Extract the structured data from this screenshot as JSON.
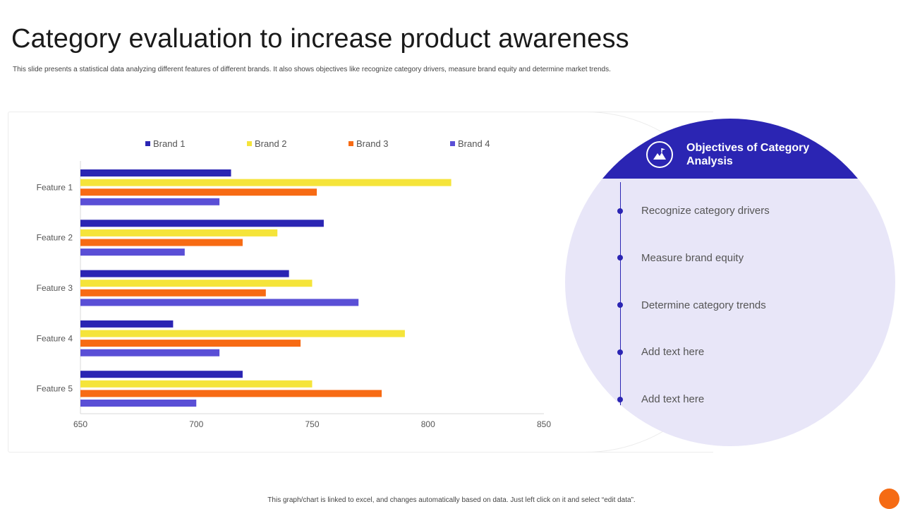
{
  "title": "Category evaluation to increase product awareness",
  "subtitle": "This slide presents a statistical data analyzing different features of different brands. It also shows objectives like recognize category drivers, measure brand equity and determine market trends.",
  "chart_data": {
    "type": "bar",
    "orientation": "horizontal",
    "categories": [
      "Feature 1",
      "Feature 2",
      "Feature 3",
      "Feature 4",
      "Feature 5"
    ],
    "series": [
      {
        "name": "Brand 1",
        "color": "#2b25b3",
        "values": [
          715,
          755,
          740,
          690,
          720
        ]
      },
      {
        "name": "Brand 2",
        "color": "#f5e43a",
        "values": [
          810,
          735,
          750,
          790,
          750
        ]
      },
      {
        "name": "Brand 3",
        "color": "#f76b14",
        "values": [
          752,
          720,
          730,
          745,
          780
        ]
      },
      {
        "name": "Brand 4",
        "color": "#5a4fd6",
        "values": [
          710,
          695,
          770,
          710,
          700
        ]
      }
    ],
    "xlim": [
      650,
      850
    ],
    "xticks": [
      650,
      700,
      750,
      800,
      850
    ],
    "legend_position": "top",
    "title": "",
    "xlabel": "",
    "ylabel": ""
  },
  "objectives": {
    "heading": "Objectives of Category Analysis",
    "icon": "mountain-flag-icon",
    "items": [
      "Recognize category drivers",
      "Measure brand equity",
      "Determine category trends",
      "Add text here",
      "Add text here"
    ]
  },
  "footer": "This graph/chart is linked to excel, and changes automatically based on data. Just left click on it and select “edit data”.",
  "colors": {
    "primary": "#2b25b3",
    "accent": "#f56b14",
    "circle_bg": "#e8e6f8"
  }
}
